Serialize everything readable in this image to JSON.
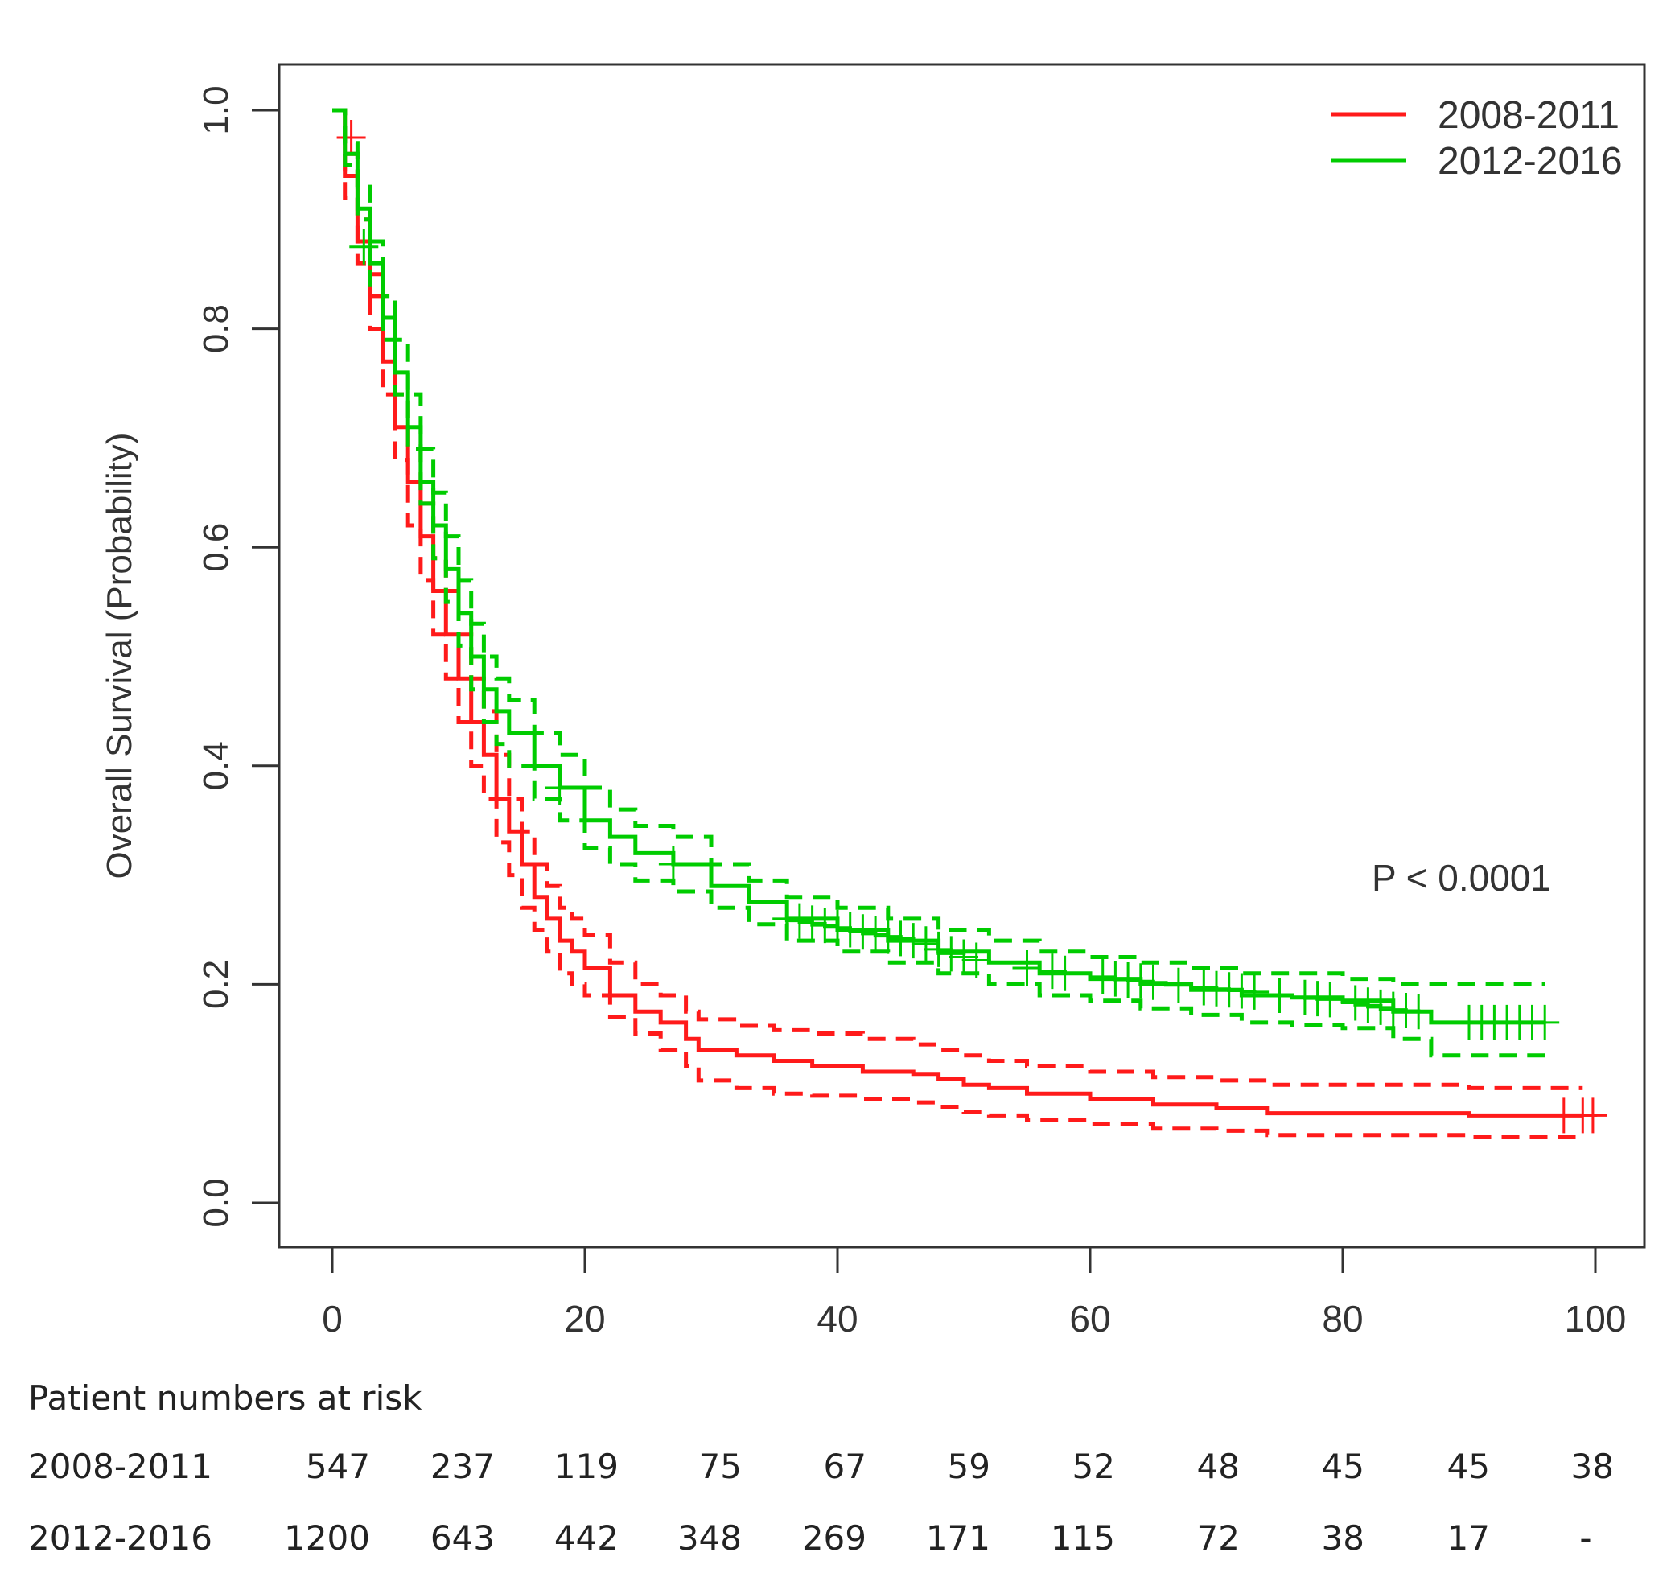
{
  "chart_data": {
    "type": "line",
    "title": "",
    "xlabel": "",
    "ylabel": "Overall Survival (Probability)",
    "xlim": [
      0,
      100
    ],
    "ylim": [
      0,
      1
    ],
    "x_ticks": [
      0,
      20,
      40,
      60,
      80,
      100
    ],
    "y_ticks": [
      0.0,
      0.2,
      0.4,
      0.6,
      0.8,
      1.0
    ],
    "x_tick_labels": [
      "0",
      "20",
      "40",
      "60",
      "80",
      "100"
    ],
    "y_tick_labels": [
      "0.0",
      "0.2",
      "0.4",
      "0.6",
      "0.8",
      "1.0"
    ],
    "grid": false,
    "legend_position": "top-right",
    "annotation": "P < 0.0001",
    "series": [
      {
        "name": "2008-2011",
        "color": "#ff1a1a",
        "x": [
          0,
          1,
          2,
          3,
          4,
          5,
          6,
          7,
          8,
          9,
          10,
          11,
          12,
          13,
          14,
          15,
          16,
          17,
          18,
          19,
          20,
          22,
          24,
          26,
          28,
          29,
          32,
          35,
          38,
          42,
          46,
          48,
          50,
          52,
          55,
          60,
          65,
          70,
          74,
          80,
          90,
          96,
          99
        ],
        "y": [
          1.0,
          0.94,
          0.88,
          0.83,
          0.77,
          0.71,
          0.66,
          0.61,
          0.56,
          0.52,
          0.48,
          0.44,
          0.41,
          0.37,
          0.34,
          0.31,
          0.28,
          0.26,
          0.24,
          0.23,
          0.215,
          0.19,
          0.175,
          0.165,
          0.15,
          0.14,
          0.135,
          0.13,
          0.125,
          0.12,
          0.118,
          0.113,
          0.108,
          0.105,
          0.1,
          0.095,
          0.09,
          0.087,
          0.082,
          0.082,
          0.08,
          0.08,
          0.08
        ],
        "lower_ci": [
          1.0,
          0.92,
          0.86,
          0.8,
          0.74,
          0.68,
          0.62,
          0.57,
          0.52,
          0.48,
          0.44,
          0.4,
          0.37,
          0.33,
          0.3,
          0.27,
          0.25,
          0.23,
          0.21,
          0.2,
          0.19,
          0.17,
          0.155,
          0.14,
          0.125,
          0.112,
          0.105,
          0.1,
          0.098,
          0.095,
          0.092,
          0.088,
          0.083,
          0.08,
          0.076,
          0.072,
          0.068,
          0.066,
          0.062,
          0.062,
          0.06,
          0.06,
          0.06
        ],
        "upper_ci": [
          1.0,
          0.96,
          0.9,
          0.85,
          0.8,
          0.74,
          0.69,
          0.64,
          0.59,
          0.56,
          0.52,
          0.48,
          0.45,
          0.41,
          0.37,
          0.34,
          0.31,
          0.29,
          0.27,
          0.26,
          0.245,
          0.22,
          0.2,
          0.19,
          0.175,
          0.168,
          0.162,
          0.158,
          0.155,
          0.15,
          0.145,
          0.14,
          0.135,
          0.13,
          0.125,
          0.12,
          0.115,
          0.112,
          0.108,
          0.108,
          0.105,
          0.105,
          0.105
        ],
        "censor_x": [
          1.5,
          97.5,
          99,
          99.8
        ],
        "censor_y": [
          0.975,
          0.08,
          0.08,
          0.08
        ]
      },
      {
        "name": "2012-2016",
        "color": "#00cc00",
        "x": [
          0,
          1,
          2,
          3,
          4,
          5,
          6,
          7,
          8,
          9,
          10,
          11,
          12,
          13,
          14,
          16,
          18,
          20,
          22,
          24,
          27,
          30,
          33,
          36,
          40,
          44,
          48,
          52,
          56,
          60,
          64,
          68,
          72,
          76,
          80,
          84,
          87,
          90,
          93,
          96
        ],
        "y": [
          1.0,
          0.96,
          0.91,
          0.86,
          0.81,
          0.76,
          0.71,
          0.66,
          0.62,
          0.58,
          0.54,
          0.5,
          0.47,
          0.45,
          0.43,
          0.4,
          0.38,
          0.35,
          0.335,
          0.32,
          0.31,
          0.29,
          0.275,
          0.26,
          0.25,
          0.24,
          0.23,
          0.22,
          0.21,
          0.205,
          0.2,
          0.195,
          0.19,
          0.188,
          0.185,
          0.175,
          0.165,
          0.165,
          0.165,
          0.165
        ],
        "lower_ci": [
          1.0,
          0.95,
          0.9,
          0.84,
          0.79,
          0.74,
          0.69,
          0.64,
          0.59,
          0.55,
          0.51,
          0.47,
          0.44,
          0.42,
          0.4,
          0.37,
          0.35,
          0.325,
          0.31,
          0.295,
          0.285,
          0.27,
          0.255,
          0.24,
          0.23,
          0.22,
          0.21,
          0.2,
          0.19,
          0.185,
          0.178,
          0.172,
          0.165,
          0.163,
          0.16,
          0.15,
          0.135,
          0.135,
          0.135,
          0.135
        ],
        "upper_ci": [
          1.0,
          0.97,
          0.93,
          0.88,
          0.83,
          0.79,
          0.74,
          0.69,
          0.65,
          0.61,
          0.57,
          0.53,
          0.5,
          0.48,
          0.46,
          0.43,
          0.41,
          0.38,
          0.36,
          0.345,
          0.335,
          0.31,
          0.295,
          0.28,
          0.27,
          0.26,
          0.25,
          0.24,
          0.23,
          0.225,
          0.22,
          0.215,
          0.21,
          0.21,
          0.205,
          0.2,
          0.2,
          0.2,
          0.2,
          0.2
        ],
        "censor_x": [
          2.5,
          18,
          27,
          36,
          37,
          38,
          39,
          40,
          41,
          42,
          43,
          44,
          45,
          46,
          47,
          48,
          49,
          50,
          51,
          55,
          57,
          58,
          61,
          62,
          63,
          64,
          65,
          67,
          69,
          70,
          71,
          72,
          73,
          75,
          77,
          78,
          79,
          81,
          82,
          83,
          84,
          85,
          86,
          90,
          91,
          92,
          93,
          94,
          95,
          96
        ],
        "censor_y": [
          0.875,
          0.38,
          0.31,
          0.26,
          0.258,
          0.256,
          0.254,
          0.252,
          0.25,
          0.248,
          0.246,
          0.244,
          0.242,
          0.24,
          0.237,
          0.232,
          0.228,
          0.225,
          0.222,
          0.215,
          0.212,
          0.21,
          0.207,
          0.205,
          0.204,
          0.203,
          0.202,
          0.199,
          0.197,
          0.196,
          0.195,
          0.194,
          0.193,
          0.19,
          0.188,
          0.187,
          0.186,
          0.183,
          0.181,
          0.179,
          0.177,
          0.176,
          0.175,
          0.165,
          0.165,
          0.165,
          0.165,
          0.165,
          0.165,
          0.165
        ]
      }
    ],
    "risk_table": {
      "title": "Patient numbers at risk",
      "times": [
        0,
        10,
        20,
        30,
        40,
        50,
        60,
        70,
        80,
        90,
        100
      ],
      "rows": [
        {
          "label": "2008-2011",
          "values": [
            "547",
            "237",
            "119",
            "75",
            "67",
            "59",
            "52",
            "48",
            "45",
            "45",
            "38"
          ]
        },
        {
          "label": "2012-2016",
          "values": [
            "1200",
            "643",
            "442",
            "348",
            "269",
            "171",
            "115",
            "72",
            "38",
            "17",
            "-"
          ]
        }
      ]
    }
  }
}
